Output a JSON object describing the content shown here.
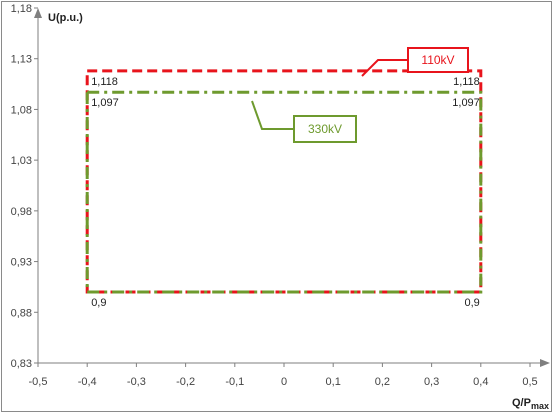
{
  "chart_data": {
    "type": "line",
    "xlabel": {
      "main": "Q/P",
      "sub": "max"
    },
    "ylabel": "U(p.u.)",
    "xlim": [
      -0.5,
      0.5
    ],
    "ylim": [
      0.83,
      1.18
    ],
    "x_ticks": [
      -0.5,
      -0.4,
      -0.3,
      -0.2,
      -0.1,
      0,
      0.1,
      0.2,
      0.3,
      0.4,
      0.5
    ],
    "x_tick_labels": [
      "-0,5",
      "-0,4",
      "-0,3",
      "-0,2",
      "-0,1",
      "0",
      "0,1",
      "0,2",
      "0,3",
      "0,4",
      "0,5"
    ],
    "y_ticks": [
      0.83,
      0.88,
      0.93,
      0.98,
      1.03,
      1.08,
      1.13,
      1.18
    ],
    "y_tick_labels": [
      "0,83",
      "0,88",
      "0,93",
      "0,98",
      "1,03",
      "1,08",
      "1,13",
      "1,18"
    ],
    "grid": false,
    "series": [
      {
        "name": "110kV",
        "color": "#e8141c",
        "style": "dashed",
        "x": [
          -0.4,
          0.4,
          0.4,
          -0.4,
          -0.4
        ],
        "y": [
          1.118,
          1.118,
          0.9,
          0.9,
          1.118
        ]
      },
      {
        "name": "330kV",
        "color": "#6e9a2e",
        "style": "dash-dot",
        "x": [
          -0.4,
          0.4,
          0.4,
          -0.4,
          -0.4
        ],
        "y": [
          1.097,
          1.097,
          0.9,
          0.9,
          1.097
        ]
      }
    ],
    "annotations": [
      {
        "text": "1,118",
        "x": -0.4,
        "y": 1.118,
        "side": "left"
      },
      {
        "text": "1,118",
        "x": 0.4,
        "y": 1.118,
        "side": "right"
      },
      {
        "text": "1,097",
        "x": -0.4,
        "y": 1.097,
        "side": "left"
      },
      {
        "text": "1,097",
        "x": 0.4,
        "y": 1.097,
        "side": "right"
      },
      {
        "text": "0,9",
        "x": -0.4,
        "y": 0.9,
        "side": "left"
      },
      {
        "text": "0,9",
        "x": 0.4,
        "y": 0.9,
        "side": "right"
      }
    ],
    "callouts": [
      {
        "series": "110kV",
        "text": "110kV"
      },
      {
        "series": "330kV",
        "text": "330kV"
      }
    ]
  }
}
